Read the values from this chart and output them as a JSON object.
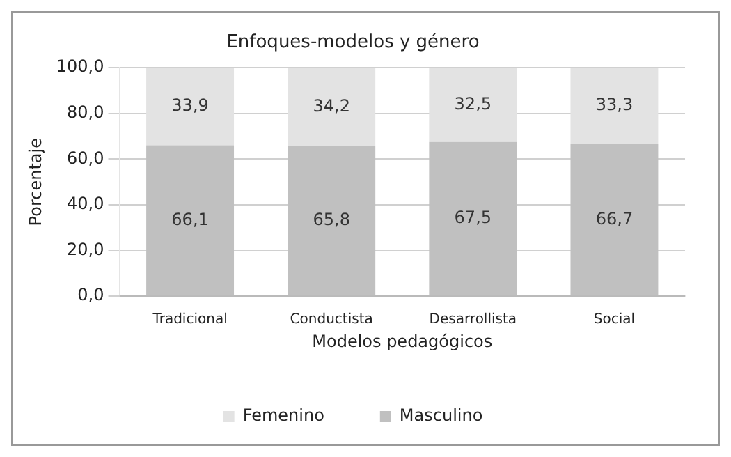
{
  "chart_data": {
    "type": "bar",
    "title": "Enfoques-modelos y género",
    "xlabel": "Modelos pedagógicos",
    "ylabel": "Porcentaje",
    "categories": [
      "Tradicional",
      "Conductista",
      "Desarrollista",
      "Social"
    ],
    "stacked": true,
    "series": [
      {
        "name": "Masculino",
        "color": "#c0c0c0",
        "values": [
          66.1,
          65.8,
          67.5,
          66.7
        ],
        "value_labels": [
          "66,1",
          "65,8",
          "67,5",
          "66,7"
        ]
      },
      {
        "name": "Femenino",
        "color": "#e3e3e3",
        "values": [
          33.9,
          34.2,
          32.5,
          33.3
        ],
        "value_labels": [
          "33,9",
          "34,2",
          "32,5",
          "33,3"
        ]
      }
    ],
    "ylim": [
      0,
      100
    ],
    "yticks": [
      {
        "value": 0,
        "label": "0,0"
      },
      {
        "value": 20,
        "label": "20,0"
      },
      {
        "value": 40,
        "label": "40,0"
      },
      {
        "value": 60,
        "label": "60,0"
      },
      {
        "value": 80,
        "label": "80,0"
      },
      {
        "value": 100,
        "label": "100,0"
      }
    ],
    "grid": "y",
    "legend": "bottom"
  }
}
